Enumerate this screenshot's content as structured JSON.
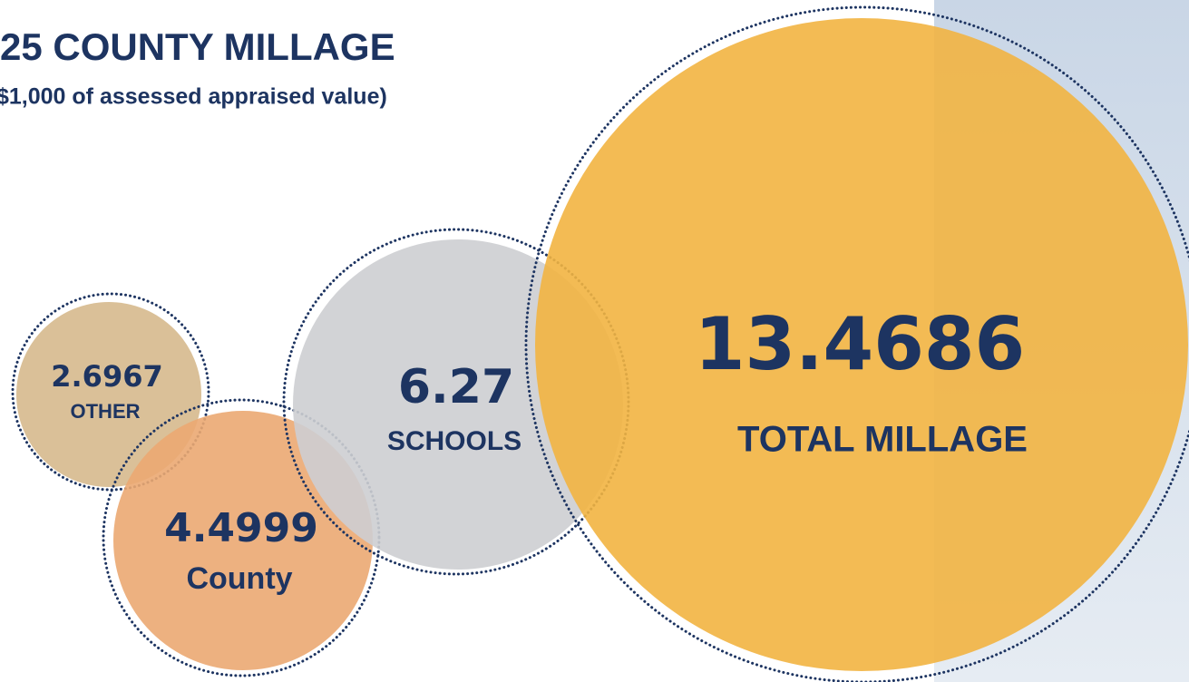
{
  "chart_data": {
    "type": "bubble",
    "title": "25 COUNTY MILLAGE",
    "subtitle": "$1,000 of assessed appraised value)",
    "categories": [
      "OTHER",
      "County",
      "SCHOOLS",
      "TOTAL MILLAGE"
    ],
    "values": [
      2.6967,
      4.4999,
      6.27,
      13.4686
    ],
    "colors": [
      "#d6b98d",
      "#eba872",
      "#cdced2",
      "#f2b441"
    ]
  }
}
